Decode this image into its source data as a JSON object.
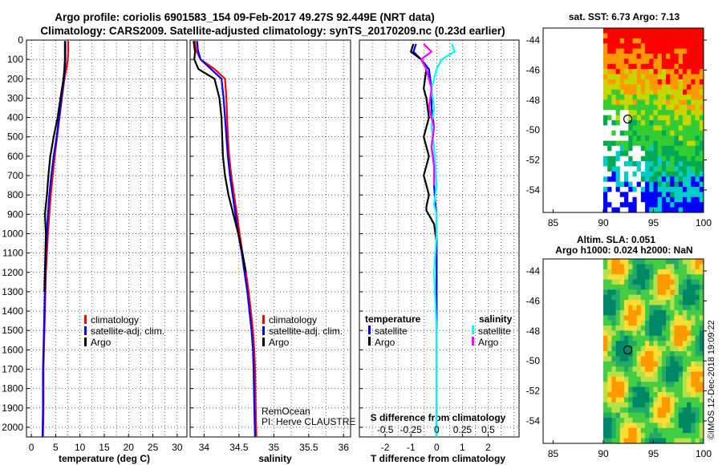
{
  "title_line1": "Argo profile: coriolis 6901583_154 09-Feb-2017 49.27S 92.449E (NRT data)",
  "title_line2": "Climatology: CARS2009. Satellite-adjusted climatology: synTS_20170209.nc (0.23d earlier)",
  "footer": "©IMOS 12-Dec-2018 19:09:22",
  "credits": {
    "institution": "RemOcean",
    "pi": "PI: Herve CLAUSTRE"
  },
  "colors": {
    "climatology": "#ff0000",
    "satellite": "#0000ff",
    "argo": "#000000",
    "sat_salinity": "#00ffff",
    "argo_salinity": "#ff00ff"
  },
  "depth_axis": {
    "ylim": [
      2050,
      0
    ],
    "ticks": [
      0,
      100,
      200,
      300,
      400,
      500,
      600,
      700,
      800,
      900,
      1000,
      1100,
      1200,
      1300,
      1400,
      1500,
      1600,
      1700,
      1800,
      1900,
      2000
    ]
  },
  "chart_data": [
    {
      "type": "line",
      "xlabel": "temperature (deg C)",
      "xlim": [
        -1,
        32
      ],
      "xticks": [
        0,
        5,
        10,
        15,
        20,
        25,
        30
      ],
      "legend": [
        "climatology",
        "satellite-adj. clim.",
        "Argo"
      ],
      "series": [
        {
          "name": "climatology",
          "color_key": "climatology",
          "x": [
            7.6,
            7.6,
            7.5,
            7.2,
            6.8,
            6.3,
            5.8,
            5.3,
            4.8,
            4.4,
            4.0,
            3.7,
            3.4,
            3.2,
            3.0,
            2.9,
            2.8,
            2.7,
            2.6,
            2.5,
            2.5,
            2.4
          ],
          "y": [
            5,
            50,
            100,
            150,
            200,
            300,
            400,
            500,
            600,
            700,
            800,
            900,
            1000,
            1100,
            1200,
            1300,
            1400,
            1500,
            1600,
            1700,
            1900,
            2050
          ]
        },
        {
          "name": "satellite-adj. clim.",
          "color_key": "satellite",
          "x": [
            7.0,
            7.0,
            7.0,
            6.9,
            6.7,
            6.2,
            5.7,
            5.2,
            4.6,
            4.1,
            3.7,
            3.4,
            3.2,
            3.0,
            2.9,
            2.8,
            2.7,
            2.6,
            2.5,
            2.4,
            2.4,
            2.3
          ],
          "y": [
            5,
            50,
            100,
            150,
            200,
            300,
            400,
            500,
            600,
            700,
            800,
            900,
            1000,
            1100,
            1200,
            1300,
            1400,
            1500,
            1600,
            1700,
            1900,
            2050
          ]
        },
        {
          "name": "Argo",
          "color_key": "argo",
          "x": [
            6.9,
            6.9,
            6.9,
            6.8,
            6.6,
            6.0,
            5.4,
            4.6,
            3.9,
            3.5,
            3.2,
            2.8,
            3.0,
            2.9,
            2.8,
            2.7
          ],
          "y": [
            5,
            50,
            100,
            150,
            200,
            300,
            400,
            500,
            600,
            700,
            800,
            900,
            1000,
            1100,
            1200,
            1300
          ]
        }
      ]
    },
    {
      "type": "line",
      "xlabel": "salinity",
      "xlim": [
        33.8,
        36.1
      ],
      "xticks": [
        34,
        34.5,
        35,
        35.5,
        36
      ],
      "legend": [
        "climatology",
        "satellite-adj. clim.",
        "Argo"
      ],
      "series": [
        {
          "name": "climatology",
          "color_key": "climatology",
          "x": [
            33.87,
            33.88,
            33.95,
            34.15,
            34.3,
            34.32,
            34.33,
            34.34,
            34.36,
            34.39,
            34.43,
            34.47,
            34.51,
            34.55,
            34.6,
            34.64,
            34.67,
            34.7,
            34.72,
            34.73,
            34.74,
            34.75
          ],
          "y": [
            5,
            50,
            100,
            150,
            200,
            300,
            400,
            500,
            600,
            700,
            800,
            900,
            1000,
            1100,
            1200,
            1300,
            1400,
            1500,
            1600,
            1700,
            1900,
            2050
          ]
        },
        {
          "name": "satellite-adj. clim.",
          "color_key": "satellite",
          "x": [
            33.9,
            33.91,
            33.95,
            34.1,
            34.25,
            34.28,
            34.3,
            34.32,
            34.34,
            34.37,
            34.41,
            34.45,
            34.49,
            34.54,
            34.58,
            34.62,
            34.65,
            34.68,
            34.7,
            34.71,
            34.72,
            34.73
          ],
          "y": [
            5,
            50,
            100,
            150,
            200,
            300,
            400,
            500,
            600,
            700,
            800,
            900,
            1000,
            1100,
            1200,
            1300,
            1400,
            1500,
            1600,
            1700,
            1900,
            2050
          ]
        },
        {
          "name": "Argo",
          "color_key": "argo",
          "x": [
            33.85,
            33.87,
            33.86,
            33.92,
            34.15,
            34.22,
            34.25,
            34.26,
            34.27,
            34.3,
            34.35,
            34.42,
            34.49,
            34.55,
            34.6
          ],
          "y": [
            5,
            60,
            100,
            150,
            200,
            300,
            400,
            500,
            600,
            700,
            800,
            900,
            1000,
            1100,
            1200
          ]
        }
      ]
    },
    {
      "type": "line",
      "xlabel": "T difference from climatology",
      "xlabel_top": "S difference from climatology",
      "xlim": [
        -3,
        3.2
      ],
      "xticks": [
        -2,
        -1,
        0,
        1,
        2
      ],
      "xticks_top_labels": [
        "-0.5",
        "-0.25",
        "0",
        "0.25",
        "0.5"
      ],
      "legend_temperature": {
        "title": "temperature",
        "items": [
          "satellite",
          "Argo"
        ]
      },
      "legend_salinity": {
        "title": "salinity",
        "items": [
          "satellite",
          "Argo"
        ]
      },
      "series": [
        {
          "name": "satellite",
          "color_key": "satellite",
          "x": [
            -0.8,
            -0.9,
            -0.6,
            -0.3,
            -0.2,
            -0.2,
            -0.1,
            -0.2,
            -0.1,
            -0.1,
            -0.05,
            0.0,
            0.0,
            0.0,
            0.0
          ],
          "y": [
            20,
            60,
            100,
            150,
            250,
            350,
            450,
            550,
            650,
            750,
            850,
            900,
            1000,
            1500,
            2050
          ]
        },
        {
          "name": "Argo",
          "color_key": "argo",
          "x": [
            -0.9,
            -1.0,
            -0.6,
            -0.4,
            -0.5,
            -0.4,
            -0.3,
            -0.5,
            -0.3,
            -0.5,
            -0.4,
            -0.3,
            -0.4,
            -0.4,
            -0.1,
            0.0
          ],
          "y": [
            20,
            60,
            100,
            150,
            250,
            300,
            400,
            500,
            600,
            700,
            750,
            800,
            860,
            880,
            950,
            1050
          ]
        },
        {
          "name": "satellite",
          "color_key": "sat_salinity",
          "x": [
            0.6,
            0.7,
            0.2,
            0.0,
            -0.2,
            -0.1,
            -0.2,
            -0.1,
            -0.05,
            0.0,
            -0.1,
            0.0,
            0.0,
            -0.1,
            0.0,
            0.0,
            0.0
          ],
          "y": [
            20,
            60,
            100,
            150,
            250,
            350,
            450,
            550,
            650,
            750,
            850,
            900,
            1000,
            1200,
            1500,
            1800,
            2050
          ]
        },
        {
          "name": "Argo",
          "color_key": "argo_salinity",
          "x": [
            -0.5,
            -0.2,
            -0.6,
            -0.4,
            -0.2,
            -0.3,
            -0.1,
            -0.2,
            -0.1,
            -0.1
          ],
          "y": [
            20,
            60,
            100,
            150,
            250,
            350,
            450,
            550,
            650,
            750
          ]
        }
      ]
    }
  ],
  "maps": [
    {
      "title": "sat. SST: 6.73 Argo: 7.13",
      "xticks": [
        "85",
        "90",
        "95",
        "100"
      ],
      "yticks": [
        "-44",
        "-46",
        "-48",
        "-50",
        "-52",
        "-54"
      ],
      "float_lat": -49.27,
      "float_lon": 92.449
    },
    {
      "title_line1": "Altim. SLA: 0.051",
      "title_line2": "Argo h1000: 0.024 h2000: NaN",
      "xticks": [
        "85",
        "90",
        "95",
        "100"
      ],
      "yticks": [
        "-44",
        "-46",
        "-48",
        "-50",
        "-52",
        "-54"
      ],
      "float_lat": -49.27,
      "float_lon": 92.449
    }
  ]
}
